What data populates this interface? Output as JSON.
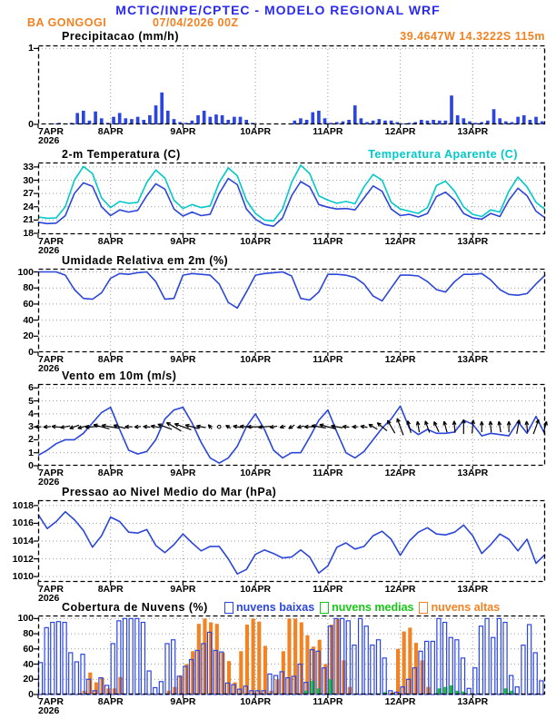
{
  "header": {
    "title": "MCTIC/INPE/CPTEC - MODELO REGIONAL WRF",
    "station": "BA GONGOGI",
    "run": "07/04/2026 00Z",
    "title_color": "#2a2af0",
    "accent_color": "#f28222"
  },
  "x_axis": {
    "ticks": [
      "7APR",
      "8APR",
      "9APR",
      "10APR",
      "11APR",
      "12APR",
      "13APR"
    ],
    "year": "2026",
    "hours_total": 168
  },
  "colors": {
    "line_blue": "#2b46d9",
    "cyan": "#00c9c9",
    "bar_blue": "#2b46e0",
    "orange": "#f28222",
    "green": "#16c816",
    "grid": "#9a9a9a",
    "axis": "#000000"
  },
  "chart_data": [
    {
      "id": "precipitation",
      "type": "bar",
      "title": "Precipitacao (mm/h)",
      "right_label": "39.4647W 14.3222S 115m",
      "ylim": [
        0,
        1.04
      ],
      "yticks": [
        0,
        1
      ],
      "step_hours": 2,
      "series": [
        {
          "name": "precipitacao",
          "color": "#2b46e0",
          "style": "filled",
          "values": [
            0,
            0,
            0.01,
            0.02,
            0.01,
            0.02,
            0.15,
            0.18,
            0.05,
            0.17,
            0.08,
            0.02,
            0.1,
            0.15,
            0.08,
            0.07,
            0.1,
            0.06,
            0.12,
            0.25,
            0.42,
            0.18,
            0.07,
            0.03,
            0.02,
            0.05,
            0.12,
            0.18,
            0.1,
            0.13,
            0.12,
            0.06,
            0.1,
            0.1,
            0.06,
            0.02,
            0,
            0,
            0,
            0,
            0,
            0,
            0.05,
            0.08,
            0.06,
            0.16,
            0.18,
            0.08,
            0.02,
            0.03,
            0.04,
            0.06,
            0.25,
            0.08,
            0.03,
            0.05,
            0.07,
            0.05,
            0.05,
            0.03,
            0.01,
            0.02,
            0.03,
            0.06,
            0.05,
            0.06,
            0.05,
            0.05,
            0.38,
            0.12,
            0.08,
            0.04,
            0.02,
            0.03,
            0.05,
            0.2,
            0.08,
            0.04,
            0.03,
            0.1,
            0.12,
            0.06,
            0.1,
            0.04
          ]
        }
      ]
    },
    {
      "id": "temperature",
      "type": "line",
      "title": "2-m Temperatura (C)",
      "right_title": {
        "text": "Temperatura Aparente (C)",
        "color": "#00c9c9"
      },
      "ylim": [
        17.8,
        34.0
      ],
      "yticks": [
        18,
        21,
        24,
        27,
        30,
        33
      ],
      "step_hours": 3,
      "series": [
        {
          "name": "2-m Temperatura (C)",
          "color": "#2b46d9",
          "values": [
            20.5,
            20.2,
            20.3,
            22.0,
            27.0,
            29.4,
            28.6,
            24.0,
            22.0,
            23.3,
            22.8,
            23.2,
            26.5,
            29.2,
            28.0,
            23.5,
            21.9,
            22.8,
            22.0,
            22.3,
            27.0,
            30.4,
            29.0,
            23.5,
            21.2,
            20.0,
            19.6,
            21.5,
            26.5,
            29.7,
            28.5,
            24.5,
            23.9,
            23.5,
            23.6,
            23.3,
            26.0,
            28.7,
            27.5,
            23.5,
            22.0,
            22.3,
            21.7,
            22.5,
            26.3,
            27.3,
            25.5,
            22.5,
            21.5,
            21.2,
            22.5,
            21.8,
            25.5,
            28.2,
            26.5,
            23.0,
            21.5
          ]
        },
        {
          "name": "Temperatura Aparente (C)",
          "color": "#00c9c9",
          "values": [
            21.7,
            21.4,
            21.5,
            24.0,
            30.0,
            33.1,
            31.5,
            26.0,
            23.8,
            25.2,
            24.8,
            25.0,
            29.5,
            32.3,
            30.5,
            25.5,
            23.6,
            24.5,
            23.8,
            24.2,
            29.5,
            32.8,
            31.0,
            25.5,
            22.5,
            21.0,
            20.8,
            23.5,
            29.5,
            33.4,
            31.5,
            26.5,
            25.5,
            24.8,
            25.2,
            24.7,
            28.5,
            31.3,
            30.0,
            25.0,
            23.5,
            23.0,
            22.5,
            23.8,
            28.8,
            29.8,
            27.5,
            24.0,
            22.3,
            21.8,
            23.3,
            22.8,
            27.5,
            30.7,
            28.5,
            25.0,
            23.4
          ]
        }
      ]
    },
    {
      "id": "humidity",
      "type": "line",
      "title": "Umidade Relativa em 2m (%)",
      "ylim": [
        0,
        104
      ],
      "yticks": [
        0,
        20,
        40,
        60,
        80,
        100
      ],
      "step_hours": 3,
      "series": [
        {
          "name": "umidade relativa",
          "color": "#2b46d9",
          "values": [
            100,
            100,
            100,
            96,
            78,
            67,
            66,
            74,
            92,
            98,
            97,
            99,
            100,
            88,
            66,
            67,
            96,
            98,
            97,
            96,
            85,
            62,
            55,
            75,
            96,
            98,
            99,
            100,
            95,
            67,
            65,
            75,
            97,
            97,
            96,
            93,
            85,
            70,
            64,
            80,
            96,
            96,
            95,
            88,
            78,
            75,
            88,
            97,
            97,
            98,
            90,
            78,
            72,
            71,
            73,
            85,
            96
          ]
        }
      ]
    },
    {
      "id": "wind",
      "type": "line",
      "title": "Vento em 10m (m/s)",
      "ylim": [
        0,
        6.3
      ],
      "yticks": [
        0,
        1,
        2,
        3,
        4,
        5,
        6
      ],
      "step_hours": 3,
      "series": [
        {
          "name": "velocidade do vento",
          "color": "#2b46d9",
          "values": [
            0.8,
            1.2,
            1.7,
            2.0,
            2.0,
            2.5,
            3.3,
            4.1,
            4.5,
            2.8,
            1.2,
            0.9,
            1.1,
            2.0,
            3.6,
            4.3,
            4.5,
            3.3,
            1.8,
            0.6,
            0.2,
            0.6,
            1.5,
            3.0,
            4.0,
            2.8,
            1.2,
            0.6,
            1.0,
            1.0,
            2.2,
            3.5,
            4.3,
            2.6,
            1.0,
            0.6,
            1.1,
            2.0,
            2.9,
            3.6,
            4.6,
            2.9,
            2.4,
            2.8,
            2.5,
            2.5,
            2.6,
            3.5,
            3.2,
            2.3,
            2.5,
            2.4,
            2.3,
            3.4,
            2.5,
            3.8,
            2.4
          ]
        }
      ],
      "arrows": {
        "name": "direcao do vento",
        "anchor_value": 3,
        "color": "#000000",
        "deg": [
          180,
          185,
          175,
          190,
          200,
          195,
          185,
          165,
          170,
          165,
          180,
          185,
          175,
          170,
          160,
          150,
          160,
          165,
          170,
          130,
          120,
          150,
          170,
          175,
          180,
          185,
          190,
          195,
          210,
          195,
          180,
          170,
          165,
          170,
          175,
          180,
          170,
          150,
          140,
          120,
          110,
          105,
          100,
          110,
          115,
          105,
          95,
          90,
          85,
          90,
          95,
          100,
          90,
          80,
          95,
          70,
          75
        ]
      }
    },
    {
      "id": "pressure",
      "type": "line",
      "title": "Pressao ao Nivel Medio do Mar (hPa)",
      "ylim": [
        1009.4,
        1018.6
      ],
      "yticks": [
        1010,
        1012,
        1014,
        1016,
        1018
      ],
      "step_hours": 3,
      "series": [
        {
          "name": "pressao",
          "color": "#2b46d9",
          "values": [
            1017.0,
            1015.4,
            1016.2,
            1017.3,
            1016.4,
            1015.2,
            1013.3,
            1014.6,
            1016.7,
            1016.2,
            1015.0,
            1014.9,
            1015.3,
            1013.5,
            1012.7,
            1013.6,
            1014.8,
            1013.8,
            1012.9,
            1013.4,
            1013.4,
            1012.0,
            1010.3,
            1010.8,
            1012.5,
            1013.0,
            1012.6,
            1012.1,
            1012.2,
            1013.0,
            1012.2,
            1010.4,
            1011.2,
            1013.3,
            1013.8,
            1013.1,
            1013.4,
            1014.6,
            1015.1,
            1014.2,
            1012.4,
            1014.0,
            1015.0,
            1015.5,
            1014.8,
            1014.7,
            1015.0,
            1015.8,
            1014.6,
            1012.6,
            1013.6,
            1014.8,
            1014.2,
            1012.9,
            1014.2,
            1011.5,
            1012.5
          ]
        }
      ]
    },
    {
      "id": "clouds",
      "type": "bar",
      "title": "Cobertura de Nuvens (%)",
      "ylim": [
        0,
        104
      ],
      "yticks": [
        0,
        20,
        40,
        60,
        80,
        100
      ],
      "step_hours": 2,
      "legend": [
        {
          "label": "nuvens baixas",
          "color": "#2b46e0"
        },
        {
          "label": "nuvens medias",
          "color": "#16c816"
        },
        {
          "label": "nuvens altas",
          "color": "#f28222"
        }
      ],
      "series": [
        {
          "name": "nuvens altas",
          "color": "#f28222",
          "style": "filled",
          "values": [
            0,
            0,
            0,
            0,
            0,
            0,
            0,
            5,
            29,
            16,
            22,
            8,
            8,
            23,
            0,
            0,
            0,
            0,
            0,
            0,
            0,
            5,
            10,
            25,
            40,
            57,
            93,
            100,
            95,
            93,
            55,
            44,
            16,
            57,
            92,
            100,
            96,
            64,
            5,
            20,
            57,
            100,
            100,
            95,
            78,
            63,
            72,
            40,
            92,
            100,
            45,
            10,
            0,
            0,
            0,
            0,
            0,
            0,
            3,
            60,
            83,
            88,
            68,
            45,
            10,
            0,
            0,
            0,
            0,
            0,
            0,
            0,
            0,
            0,
            0,
            0,
            0,
            0,
            0,
            0,
            0,
            0,
            0,
            0
          ]
        },
        {
          "name": "nuvens medias",
          "color": "#16c816",
          "style": "filled",
          "values": [
            0,
            0,
            0,
            0,
            0,
            0,
            0,
            0,
            0,
            0,
            0,
            0,
            0,
            0,
            0,
            0,
            0,
            0,
            0,
            0,
            0,
            0,
            0,
            0,
            0,
            0,
            0,
            0,
            0,
            0,
            0,
            0,
            0,
            0,
            0,
            0,
            0,
            0,
            0,
            0,
            0,
            0,
            0,
            0,
            5,
            18,
            8,
            0,
            20,
            0,
            0,
            0,
            0,
            0,
            0,
            0,
            0,
            3,
            0,
            0,
            0,
            0,
            0,
            0,
            0,
            0,
            8,
            10,
            12,
            5,
            4,
            0,
            0,
            0,
            0,
            0,
            0,
            8,
            5,
            0,
            0,
            0,
            0,
            0
          ]
        },
        {
          "name": "nuvens baixas",
          "color": "#2b46e0",
          "style": "hollow",
          "values": [
            42,
            88,
            95,
            96,
            95,
            55,
            43,
            53,
            20,
            5,
            22,
            12,
            67,
            97,
            100,
            100,
            100,
            95,
            31,
            9,
            17,
            67,
            72,
            24,
            37,
            46,
            58,
            67,
            82,
            58,
            56,
            15,
            13,
            7,
            11,
            5,
            5,
            5,
            27,
            25,
            30,
            22,
            24,
            40,
            16,
            59,
            57,
            35,
            90,
            100,
            100,
            97,
            65,
            100,
            90,
            65,
            72,
            48,
            5,
            3,
            10,
            20,
            35,
            57,
            70,
            70,
            100,
            95,
            75,
            72,
            48,
            8,
            35,
            90,
            100,
            75,
            100,
            95,
            25,
            10,
            65,
            92,
            55,
            18
          ]
        }
      ]
    }
  ]
}
